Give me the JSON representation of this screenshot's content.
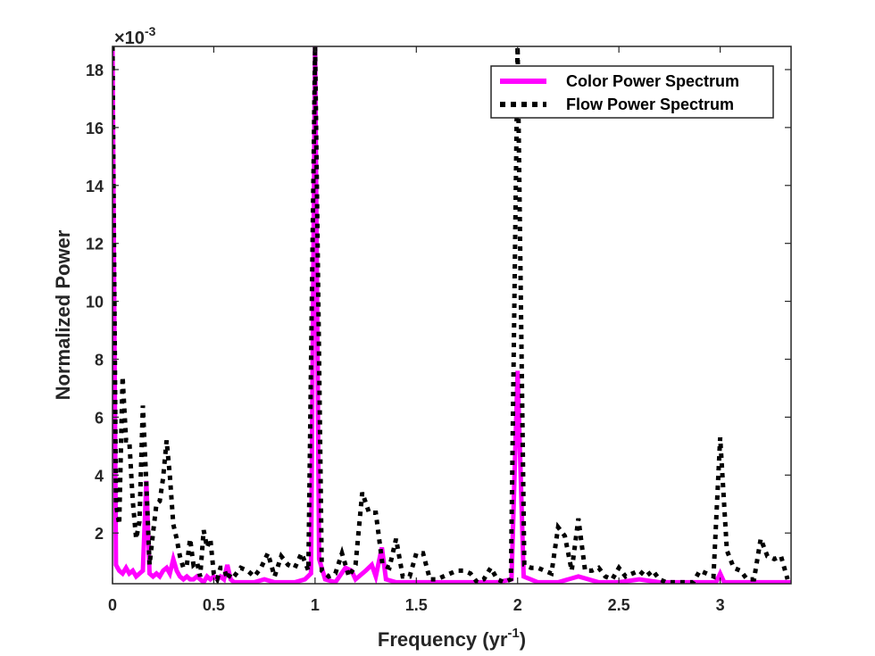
{
  "chart_data": {
    "type": "line",
    "title": "",
    "xlabel": "Frequency (yr",
    "xlabel_sup": "-1",
    "xlabel_tail": ")",
    "ylabel": "Normalized Power",
    "y_exponent_label": "×10",
    "y_exponent_sup": "-3",
    "xlim": [
      0,
      3.35
    ],
    "ylim": [
      0.25,
      18.8
    ],
    "x_scale": "linear",
    "y_scale": "linear",
    "grid": false,
    "legend_position": "top-right",
    "x_ticks": [
      0,
      0.5,
      1,
      1.5,
      2,
      2.5,
      3
    ],
    "x_tick_labels": [
      "0",
      "0.5",
      "1",
      "1.5",
      "2",
      "2.5",
      "3"
    ],
    "y_ticks": [
      2,
      4,
      6,
      8,
      10,
      12,
      14,
      16,
      18
    ],
    "y_tick_labels": [
      "2",
      "4",
      "6",
      "8",
      "10",
      "12",
      "14",
      "16",
      "18"
    ],
    "series": [
      {
        "name": "Color Power Spectrum",
        "color": "#ff00ff",
        "style": "solid",
        "x": [
          0.0,
          0.017,
          0.033,
          0.05,
          0.067,
          0.083,
          0.1,
          0.117,
          0.133,
          0.15,
          0.167,
          0.183,
          0.2,
          0.217,
          0.233,
          0.25,
          0.267,
          0.283,
          0.3,
          0.317,
          0.333,
          0.35,
          0.367,
          0.383,
          0.4,
          0.417,
          0.433,
          0.45,
          0.467,
          0.483,
          0.5,
          0.517,
          0.533,
          0.55,
          0.567,
          0.583,
          0.6,
          0.65,
          0.7,
          0.75,
          0.8,
          0.85,
          0.9,
          0.95,
          0.98,
          1.0,
          1.02,
          1.05,
          1.1,
          1.15,
          1.18,
          1.2,
          1.25,
          1.28,
          1.3,
          1.33,
          1.35,
          1.4,
          1.5,
          1.6,
          1.7,
          1.8,
          1.9,
          1.97,
          2.0,
          2.03,
          2.1,
          2.2,
          2.3,
          2.4,
          2.5,
          2.6,
          2.7,
          2.8,
          2.9,
          2.98,
          3.0,
          3.02,
          3.1,
          3.2,
          3.3,
          3.35
        ],
        "y": [
          18.8,
          0.9,
          0.7,
          0.6,
          0.8,
          0.6,
          0.7,
          0.5,
          0.6,
          0.7,
          3.8,
          0.6,
          0.5,
          0.6,
          0.5,
          0.7,
          0.8,
          0.6,
          1.1,
          0.7,
          0.5,
          0.4,
          0.5,
          0.4,
          0.4,
          0.5,
          0.4,
          0.3,
          0.5,
          0.4,
          0.5,
          0.4,
          0.5,
          0.4,
          0.9,
          0.4,
          0.3,
          0.3,
          0.3,
          0.4,
          0.3,
          0.3,
          0.3,
          0.4,
          0.6,
          18.8,
          1.1,
          0.4,
          0.3,
          0.8,
          0.7,
          0.4,
          0.7,
          0.9,
          0.5,
          1.5,
          0.4,
          0.3,
          0.3,
          0.3,
          0.3,
          0.3,
          0.3,
          0.4,
          7.6,
          0.5,
          0.3,
          0.3,
          0.5,
          0.3,
          0.3,
          0.4,
          0.3,
          0.3,
          0.3,
          0.3,
          0.6,
          0.3,
          0.3,
          0.3,
          0.3,
          0.3
        ]
      },
      {
        "name": "Flow Power Spectrum",
        "color": "#000000",
        "style": "dotted",
        "x": [
          0.0,
          0.017,
          0.033,
          0.05,
          0.067,
          0.083,
          0.1,
          0.117,
          0.133,
          0.15,
          0.167,
          0.183,
          0.2,
          0.217,
          0.233,
          0.25,
          0.267,
          0.283,
          0.3,
          0.317,
          0.333,
          0.35,
          0.367,
          0.383,
          0.4,
          0.417,
          0.433,
          0.45,
          0.467,
          0.483,
          0.5,
          0.517,
          0.533,
          0.55,
          0.567,
          0.583,
          0.6,
          0.633,
          0.667,
          0.7,
          0.733,
          0.767,
          0.8,
          0.833,
          0.867,
          0.9,
          0.933,
          0.967,
          1.0,
          1.033,
          1.067,
          1.1,
          1.133,
          1.167,
          1.2,
          1.233,
          1.267,
          1.3,
          1.333,
          1.367,
          1.4,
          1.433,
          1.467,
          1.5,
          1.533,
          1.567,
          1.6,
          1.633,
          1.667,
          1.7,
          1.733,
          1.767,
          1.8,
          1.833,
          1.867,
          1.9,
          1.933,
          1.967,
          2.0,
          2.033,
          2.067,
          2.1,
          2.133,
          2.167,
          2.2,
          2.233,
          2.267,
          2.3,
          2.333,
          2.367,
          2.4,
          2.433,
          2.467,
          2.5,
          2.533,
          2.567,
          2.6,
          2.633,
          2.667,
          2.7,
          2.733,
          2.767,
          2.8,
          2.833,
          2.867,
          2.9,
          2.933,
          2.967,
          3.0,
          3.033,
          3.067,
          3.1,
          3.133,
          3.167,
          3.2,
          3.233,
          3.267,
          3.3,
          3.333
        ],
        "y": [
          18.8,
          3.0,
          2.3,
          7.4,
          5.2,
          5.2,
          3.1,
          1.8,
          2.4,
          6.4,
          3.7,
          0.9,
          2.0,
          3.0,
          3.1,
          3.9,
          5.2,
          4.0,
          2.3,
          1.8,
          1.2,
          0.8,
          0.9,
          1.8,
          0.9,
          1.0,
          0.5,
          2.1,
          1.5,
          1.8,
          0.6,
          0.4,
          0.8,
          0.8,
          0.4,
          0.6,
          0.5,
          0.8,
          0.7,
          0.5,
          0.8,
          1.3,
          0.5,
          1.2,
          0.9,
          0.8,
          1.3,
          0.7,
          18.8,
          0.7,
          0.5,
          0.6,
          1.3,
          0.5,
          0.9,
          3.4,
          2.7,
          2.7,
          0.9,
          0.8,
          1.8,
          0.5,
          0.5,
          1.3,
          1.3,
          0.4,
          0.4,
          0.5,
          0.6,
          0.7,
          0.7,
          0.6,
          0.3,
          0.4,
          0.8,
          0.4,
          0.3,
          0.4,
          18.8,
          0.9,
          0.8,
          0.8,
          0.7,
          0.6,
          2.2,
          1.9,
          0.7,
          2.5,
          0.7,
          0.7,
          0.8,
          0.5,
          0.4,
          0.8,
          0.5,
          0.6,
          0.7,
          0.5,
          0.7,
          0.4,
          0.3,
          0.3,
          0.3,
          0.3,
          0.3,
          0.7,
          0.6,
          0.5,
          5.3,
          1.4,
          0.8,
          0.7,
          0.4,
          0.4,
          1.8,
          1.2,
          1.1,
          1.2,
          0.4
        ]
      }
    ]
  }
}
